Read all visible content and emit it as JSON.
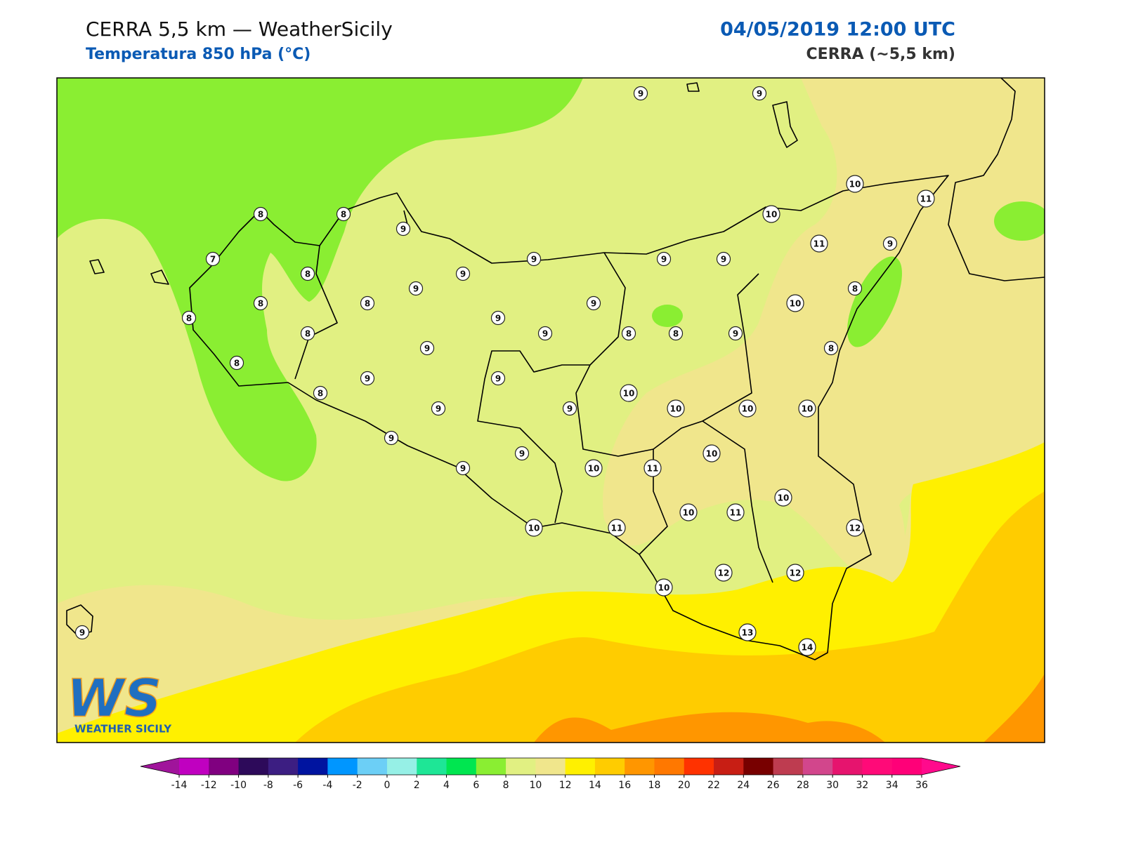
{
  "header": {
    "title": "CERRA 5,5 km — WeatherSicily",
    "subtitle": "Temperatura 850 hPa (°C)",
    "datetime": "04/05/2019 12:00 UTC",
    "model": "CERRA (~5,5 km)"
  },
  "map": {
    "stations": [
      9,
      9,
      10,
      11,
      10,
      8,
      8,
      9,
      7,
      8,
      9,
      9,
      9,
      9,
      11,
      9,
      9,
      8,
      8,
      9,
      10,
      8,
      8,
      8,
      9,
      9,
      8,
      8,
      9,
      8,
      9,
      8,
      9,
      9,
      8,
      10,
      9,
      9,
      10,
      10,
      10,
      9,
      9,
      10,
      9,
      10,
      11,
      10,
      10,
      11,
      10,
      11,
      12,
      10,
      12,
      12,
      13,
      14,
      9
    ]
  },
  "logo": {
    "mark": "WS",
    "name": "WEATHER SICILY"
  },
  "colorbar": {
    "ticks": [
      -14,
      -12,
      -10,
      -8,
      -6,
      -4,
      -2,
      0,
      2,
      4,
      6,
      8,
      10,
      12,
      14,
      16,
      18,
      20,
      22,
      24,
      26,
      28,
      30,
      32,
      34,
      36
    ],
    "colors": [
      "#a0149b",
      "#c000c0",
      "#800080",
      "#2d0a5a",
      "#3c1e82",
      "#0014a0",
      "#0096ff",
      "#6ccff6",
      "#96f0e6",
      "#1ee696",
      "#00e650",
      "#8aee32",
      "#e1f082",
      "#f0e68c",
      "#fff000",
      "#ffcc00",
      "#ff9600",
      "#ff7800",
      "#ff3200",
      "#c81e14",
      "#780000",
      "#be3c50",
      "#d2468c",
      "#e6146e",
      "#ff0a78",
      "#ff0078",
      "#ff0a8c"
    ]
  }
}
